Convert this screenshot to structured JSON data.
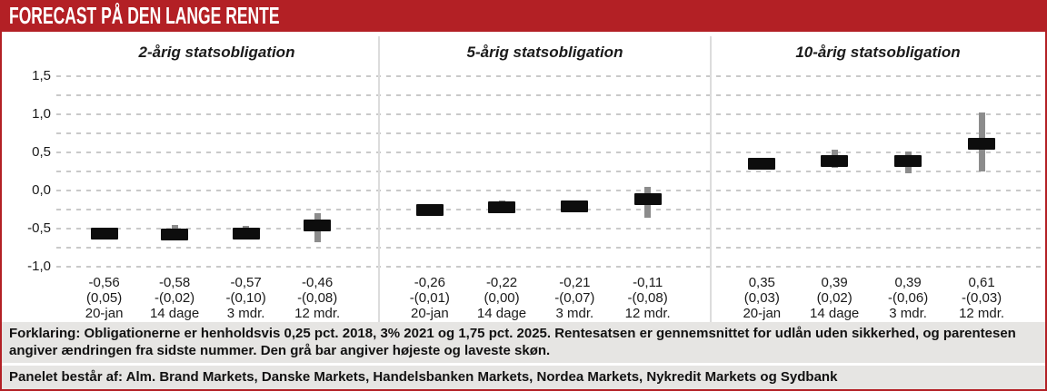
{
  "header": {
    "title": "FORECAST PÅ DEN LANGE RENTE"
  },
  "colors": {
    "accent_red": "#b32025",
    "bar_black": "#0d0d0d",
    "whisker_gray": "#8c8c8c",
    "grid_gray": "#c9c9c9",
    "footer_bg": "#e6e5e3"
  },
  "chart_data": {
    "type": "bar",
    "subtype": "forecast-range-bars",
    "ylim": [
      -1.0,
      1.5
    ],
    "grid_step": 0.25,
    "grid": "dashed-horizontal",
    "yticks": [
      {
        "value": 1.5,
        "label": "1,5"
      },
      {
        "value": 1.0,
        "label": "1,0"
      },
      {
        "value": 0.5,
        "label": "0,5"
      },
      {
        "value": 0.0,
        "label": "0,0"
      },
      {
        "value": -0.5,
        "label": "-0,5"
      },
      {
        "value": -1.0,
        "label": "-1,0"
      }
    ],
    "panels": [
      {
        "title": "2-årig statsobligation",
        "points": [
          {
            "value": -0.56,
            "value_label": "-0,56",
            "change_label": "(0,05)",
            "period": "20-jan",
            "high": null,
            "low": null
          },
          {
            "value": -0.58,
            "value_label": "-0,58",
            "change_label": "-(0,02)",
            "period": "14 dage",
            "high": -0.45,
            "low": -0.64
          },
          {
            "value": -0.57,
            "value_label": "-0,57",
            "change_label": "-(0,10)",
            "period": "3 mdr.",
            "high": -0.47,
            "low": -0.62
          },
          {
            "value": -0.46,
            "value_label": "-0,46",
            "change_label": "-(0,08)",
            "period": "12 mdr.",
            "high": -0.3,
            "low": -0.68
          }
        ]
      },
      {
        "title": "5-årig statsobligation",
        "points": [
          {
            "value": -0.26,
            "value_label": "-0,26",
            "change_label": "-(0,01)",
            "period": "20-jan",
            "high": null,
            "low": null
          },
          {
            "value": -0.22,
            "value_label": "-0,22",
            "change_label": "(0,00)",
            "period": "14 dage",
            "high": -0.13,
            "low": -0.28
          },
          {
            "value": -0.21,
            "value_label": "-0,21",
            "change_label": "-(0,07)",
            "period": "3 mdr.",
            "high": null,
            "low": null
          },
          {
            "value": -0.11,
            "value_label": "-0,11",
            "change_label": "-(0,08)",
            "period": "12 mdr.",
            "high": 0.05,
            "low": -0.36
          }
        ]
      },
      {
        "title": "10-årig statsobligation",
        "points": [
          {
            "value": 0.35,
            "value_label": "0,35",
            "change_label": "(0,03)",
            "period": "20-jan",
            "high": null,
            "low": null
          },
          {
            "value": 0.39,
            "value_label": "0,39",
            "change_label": "(0,02)",
            "period": "14 dage",
            "high": 0.53,
            "low": 0.3
          },
          {
            "value": 0.39,
            "value_label": "0,39",
            "change_label": "-(0,06)",
            "period": "3 mdr.",
            "high": 0.51,
            "low": 0.23
          },
          {
            "value": 0.61,
            "value_label": "0,61",
            "change_label": "-(0,03)",
            "period": "12 mdr.",
            "high": 1.02,
            "low": 0.25
          }
        ]
      }
    ]
  },
  "footer": {
    "explanation": "Forklaring: Obligationerne er henholdsvis 0,25 pct. 2018, 3% 2021 og 1,75 pct. 2025. Rentesatsen er gennemsnittet for udlån uden sikkerhed, og parentesen angiver ændringen fra sidste nummer. Den grå bar angiver højeste og laveste skøn.",
    "panel_line": "Panelet består af: Alm. Brand Markets, Danske Markets, Handelsbanken Markets, Nordea Markets, Nykredit Markets og Sydbank"
  }
}
